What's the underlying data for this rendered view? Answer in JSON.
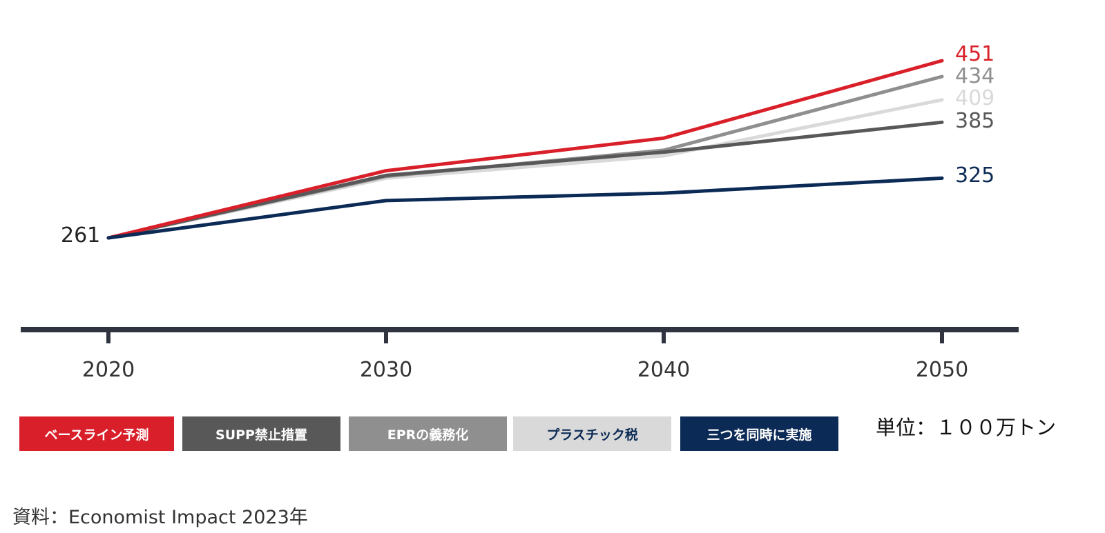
{
  "chart_data": {
    "type": "line",
    "title": "",
    "xlabel": "",
    "ylabel": "",
    "x": [
      "2020",
      "2030",
      "2040",
      "2050"
    ],
    "ylim": [
      180,
      470
    ],
    "unit_label": "単位：１００万トン",
    "start_label": "261",
    "series": [
      {
        "name": "ベースライン予測",
        "color": "#d9202a",
        "text_color": "#ffffff",
        "values": [
          261,
          333,
          368,
          451
        ],
        "end_label": "451"
      },
      {
        "name": "SUPP禁止措置",
        "color": "#585858",
        "text_color": "#ffffff",
        "values": [
          261,
          328,
          353,
          385
        ],
        "end_label": "385"
      },
      {
        "name": "EPRの義務化",
        "color": "#8f8f8f",
        "text_color": "#ffffff",
        "values": [
          261,
          327,
          355,
          434
        ],
        "end_label": "434"
      },
      {
        "name": "プラスチック税",
        "color": "#d9d9d9",
        "text_color": "#0b2a55",
        "values": [
          261,
          325,
          349,
          409
        ],
        "end_label": "409"
      },
      {
        "name": "三つを同時に実施",
        "color": "#0b2a55",
        "text_color": "#ffffff",
        "values": [
          261,
          301,
          309,
          325
        ],
        "end_label": "325"
      }
    ]
  },
  "source": "資料：Economist Impact 2023年"
}
